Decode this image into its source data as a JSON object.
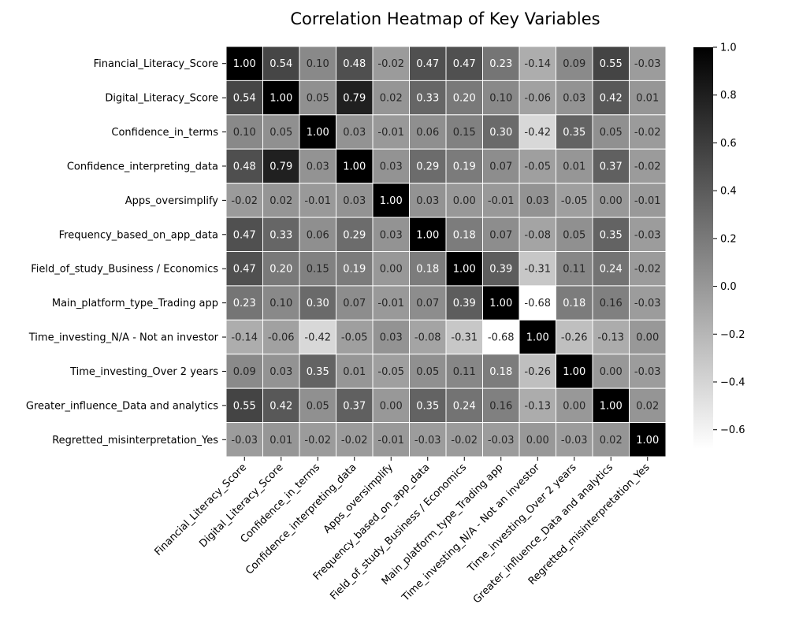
{
  "chart_data": {
    "type": "heatmap",
    "title": "Correlation Heatmap of Key Variables",
    "colormap": "gray_r",
    "vmin": -0.68,
    "vmax": 1.0,
    "labels": [
      "Financial_Literacy_Score",
      "Digital_Literacy_Score",
      "Confidence_in_terms",
      "Confidence_interpreting_data",
      "Apps_oversimplify",
      "Frequency_based_on_app_data",
      "Field_of_study_Business / Economics",
      "Main_platform_type_Trading app",
      "Time_investing_N/A - Not an investor",
      "Time_investing_Over 2 years",
      "Greater_influence_Data and analytics",
      "Regretted_misinterpretation_Yes"
    ],
    "values": [
      [
        1.0,
        0.54,
        0.1,
        0.48,
        -0.02,
        0.47,
        0.47,
        0.23,
        -0.14,
        0.09,
        0.55,
        -0.03
      ],
      [
        0.54,
        1.0,
        0.05,
        0.79,
        0.02,
        0.33,
        0.2,
        0.1,
        -0.06,
        0.03,
        0.42,
        0.01
      ],
      [
        0.1,
        0.05,
        1.0,
        0.03,
        -0.01,
        0.06,
        0.15,
        0.3,
        -0.42,
        0.35,
        0.05,
        -0.02
      ],
      [
        0.48,
        0.79,
        0.03,
        1.0,
        0.03,
        0.29,
        0.19,
        0.07,
        -0.05,
        0.01,
        0.37,
        -0.02
      ],
      [
        -0.02,
        0.02,
        -0.01,
        0.03,
        1.0,
        0.03,
        -0.0,
        -0.01,
        0.03,
        -0.05,
        -0.0,
        -0.01
      ],
      [
        0.47,
        0.33,
        0.06,
        0.29,
        0.03,
        1.0,
        0.18,
        0.07,
        -0.08,
        0.05,
        0.35,
        -0.03
      ],
      [
        0.47,
        0.2,
        0.15,
        0.19,
        -0.0,
        0.18,
        1.0,
        0.39,
        -0.31,
        0.11,
        0.24,
        -0.02
      ],
      [
        0.23,
        0.1,
        0.3,
        0.07,
        -0.01,
        0.07,
        0.39,
        1.0,
        -0.68,
        0.18,
        0.16,
        -0.03
      ],
      [
        -0.14,
        -0.06,
        -0.42,
        -0.05,
        0.03,
        -0.08,
        -0.31,
        -0.68,
        1.0,
        -0.26,
        -0.13,
        -0.0
      ],
      [
        0.09,
        0.03,
        0.35,
        0.01,
        -0.05,
        0.05,
        0.11,
        0.18,
        -0.26,
        1.0,
        0.0,
        -0.03
      ],
      [
        0.55,
        0.42,
        0.05,
        0.37,
        -0.0,
        0.35,
        0.24,
        0.16,
        -0.13,
        0.0,
        1.0,
        0.02
      ],
      [
        -0.03,
        0.01,
        -0.02,
        -0.02,
        -0.01,
        -0.03,
        -0.02,
        -0.03,
        -0.0,
        -0.03,
        0.02,
        1.0
      ]
    ],
    "colorbar_ticks": [
      1.0,
      0.8,
      0.6,
      0.4,
      0.2,
      0.0,
      -0.2,
      -0.4,
      -0.6
    ],
    "colorbar_tick_labels": [
      "1.0",
      "0.8",
      "0.6",
      "0.4",
      "0.2",
      "0.0",
      "−0.2",
      "−0.4",
      "−0.6"
    ],
    "annotations": "values shown in each cell, 2 decimals"
  }
}
